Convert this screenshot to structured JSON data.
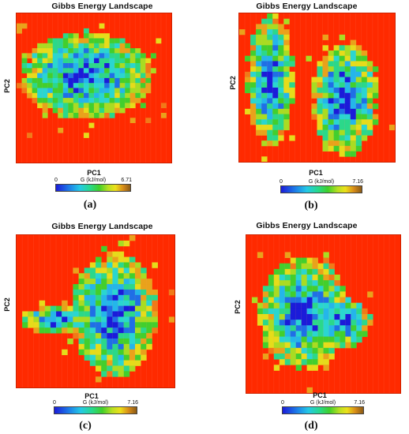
{
  "panels": [
    {
      "id": "a",
      "title": "Gibbs Energy Landscape",
      "xlabel": "PC1",
      "ylabel": "PC2",
      "colorbar": {
        "min": "0",
        "max": "6.71",
        "label": "G (kJ/mol)"
      },
      "caption": "(a)"
    },
    {
      "id": "b",
      "title": "Gibbs Energy Landscape",
      "xlabel": "PC1",
      "ylabel": "PC2",
      "colorbar": {
        "min": "0",
        "max": "7.16",
        "label": "G (kJ/mol)"
      },
      "caption": "(b)"
    },
    {
      "id": "c",
      "title": "Gibbs Energy Landscape",
      "xlabel": "PC1",
      "ylabel": "PC2",
      "colorbar": {
        "min": "0",
        "max": "7.16",
        "label": "G (kJ/mol)"
      },
      "caption": "(c)"
    },
    {
      "id": "d",
      "title": "Gibbs Energy Landscape",
      "xlabel": "PC1",
      "ylabel": "PC2",
      "colorbar": {
        "min": "0",
        "max": "7.16",
        "label": "G (kJ/mol)"
      },
      "caption": "(d)"
    }
  ],
  "chart_data": [
    {
      "type": "heatmap",
      "title": "Gibbs Energy Landscape",
      "xlabel": "PC1",
      "ylabel": "PC2",
      "colorbar_label": "G (kJ/mol)",
      "color_range": [
        0,
        6.71
      ],
      "grid": false,
      "basins": [
        {
          "pc1": 0.45,
          "pc2": 0.45
        }
      ]
    },
    {
      "type": "heatmap",
      "title": "Gibbs Energy Landscape",
      "xlabel": "PC1",
      "ylabel": "PC2",
      "colorbar_label": "G (kJ/mol)",
      "color_range": [
        0,
        7.16
      ],
      "grid": false,
      "basins": [
        {
          "pc1": 0.2,
          "pc2": 0.5
        },
        {
          "pc1": 0.7,
          "pc2": 0.6
        }
      ]
    },
    {
      "type": "heatmap",
      "title": "Gibbs Energy Landscape",
      "xlabel": "PC1",
      "ylabel": "PC2",
      "colorbar_label": "G (kJ/mol)",
      "color_range": [
        0,
        7.16
      ],
      "grid": false,
      "basins": [
        {
          "pc1": 0.6,
          "pc2": 0.35
        }
      ]
    },
    {
      "type": "heatmap",
      "title": "Gibbs Energy Landscape",
      "xlabel": "PC1",
      "ylabel": "PC2",
      "colorbar_label": "G (kJ/mol)",
      "color_range": [
        0,
        7.16
      ],
      "grid": false,
      "basins": [
        {
          "pc1": 0.4,
          "pc2": 0.45
        }
      ]
    }
  ]
}
